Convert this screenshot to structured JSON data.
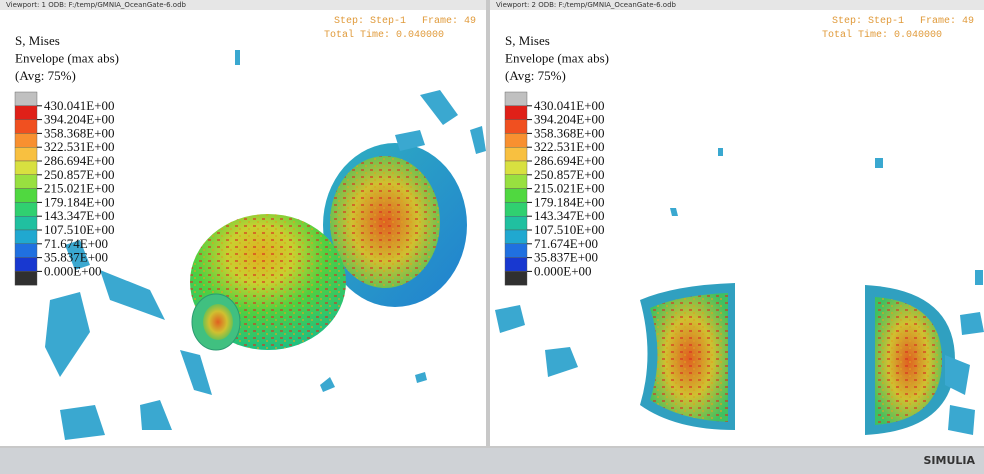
{
  "viewports": [
    {
      "header": "Viewport: 1    ODB: F:/temp/GMNIA_OceanGate-6.odb",
      "step": "Step: Step-1",
      "frame": "Frame: 49",
      "time": "Total Time: 0.040000",
      "legend": {
        "title": [
          "S, Mises",
          "Envelope (max abs)",
          "(Avg: 75%)"
        ],
        "labels": [
          "430.041E+00",
          "394.204E+00",
          "358.368E+00",
          "322.531E+00",
          "286.694E+00",
          "250.857E+00",
          "215.021E+00",
          "179.184E+00",
          "143.347E+00",
          "107.510E+00",
          "71.674E+00",
          "35.837E+00",
          "0.000E+00"
        ]
      }
    },
    {
      "header": "Viewport: 2    ODB: F:/temp/GMNIA_OceanGate-6.odb",
      "step": "Step: Step-1",
      "frame": "Frame: 49",
      "time": "Total Time: 0.040000",
      "legend": {
        "title": [
          "S, Mises",
          "Envelope (max abs)",
          "(Avg: 75%)"
        ],
        "labels": [
          "430.041E+00",
          "394.204E+00",
          "358.368E+00",
          "322.531E+00",
          "286.694E+00",
          "250.857E+00",
          "215.021E+00",
          "179.184E+00",
          "143.347E+00",
          "107.510E+00",
          "71.674E+00",
          "35.837E+00",
          "0.000E+00"
        ]
      }
    }
  ],
  "footer": {
    "logo": "SIMULIA"
  }
}
